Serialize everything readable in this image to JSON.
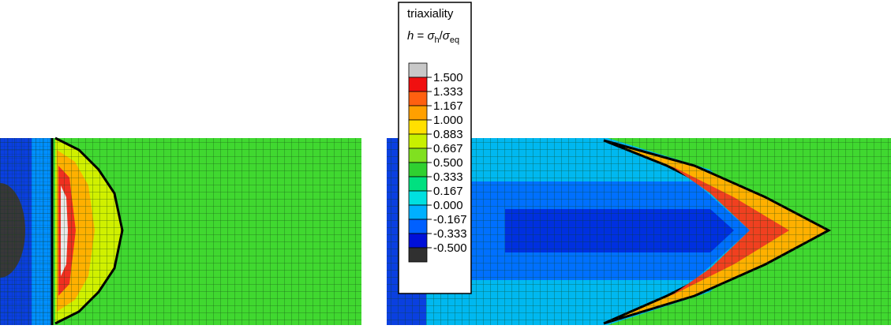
{
  "legend": {
    "title": "triaxiality",
    "formula": {
      "symbol": "h",
      "relation": "=",
      "numerator": {
        "base": "σ",
        "sub": "h"
      },
      "divider": "/",
      "denominator": {
        "base": "σ",
        "sub": "eq"
      }
    },
    "levels": [
      "1.500",
      "1.333",
      "1.167",
      "1.000",
      "0.883",
      "0.667",
      "0.500",
      "0.333",
      "0.167",
      "0.000",
      "-0.167",
      "-0.333",
      "-0.500"
    ],
    "colors": [
      "#c8c8c8",
      "#f01010",
      "#ff6010",
      "#ffa000",
      "#ffe000",
      "#c8f000",
      "#80e020",
      "#30d030",
      "#00e080",
      "#00e0e0",
      "#00b0ff",
      "#0060ff",
      "#0010d8",
      "#303030"
    ]
  }
}
